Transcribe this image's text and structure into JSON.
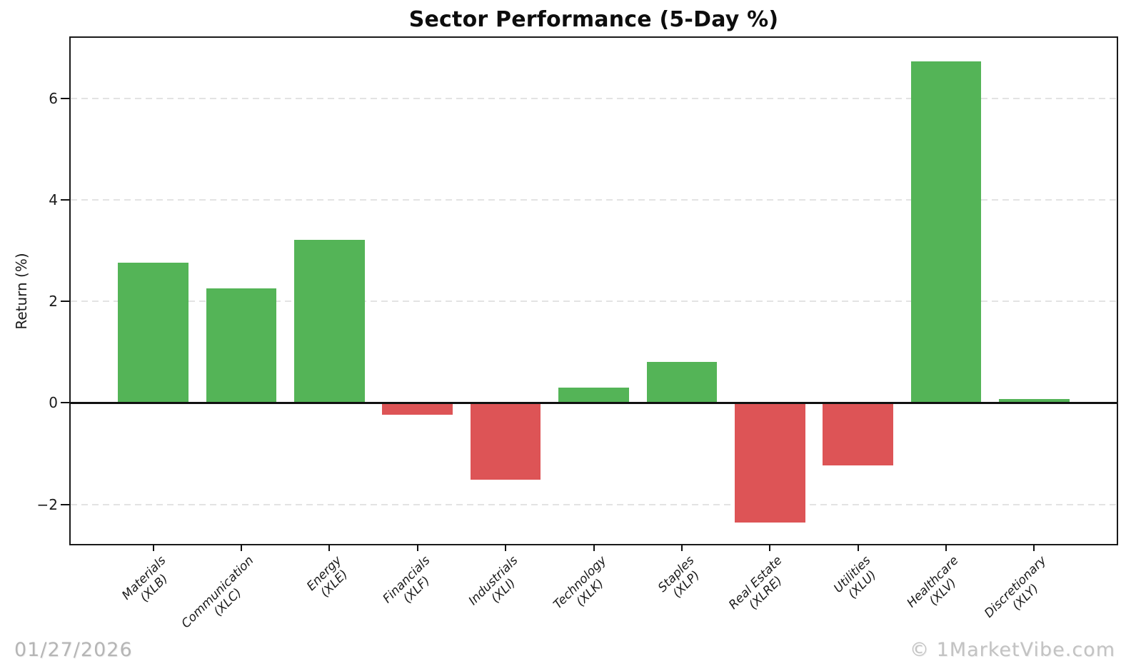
{
  "watermark_left": "01/27/2026",
  "watermark_right": "© 1MarketVibe.com",
  "chart_data": {
    "type": "bar",
    "title": "Sector Performance (5-Day %)",
    "xlabel": "",
    "ylabel": "Return (%)",
    "categories": [
      {
        "name": "Materials",
        "ticker": "(XLB)"
      },
      {
        "name": "Communication",
        "ticker": "(XLC)"
      },
      {
        "name": "Energy",
        "ticker": "(XLE)"
      },
      {
        "name": "Financials",
        "ticker": "(XLF)"
      },
      {
        "name": "Industrials",
        "ticker": "(XLI)"
      },
      {
        "name": "Technology",
        "ticker": "(XLK)"
      },
      {
        "name": "Staples",
        "ticker": "(XLP)"
      },
      {
        "name": "Real Estate",
        "ticker": "(XLRE)"
      },
      {
        "name": "Utilities",
        "ticker": "(XLU)"
      },
      {
        "name": "Healthcare",
        "ticker": "(XLV)"
      },
      {
        "name": "Discretionary",
        "ticker": "(XLY)"
      }
    ],
    "values": [
      2.76,
      2.25,
      3.21,
      -0.23,
      -1.52,
      0.3,
      0.8,
      -2.36,
      -1.23,
      6.72,
      0.08
    ],
    "positive_color": "#54b457",
    "negative_color": "#dd5456",
    "yticks": [
      6,
      4,
      2,
      0,
      -2
    ],
    "ylim": [
      -2.78,
      7.19
    ],
    "grid": "horizontal-dashed",
    "legend": "none",
    "bar_width_fraction": 0.8
  }
}
